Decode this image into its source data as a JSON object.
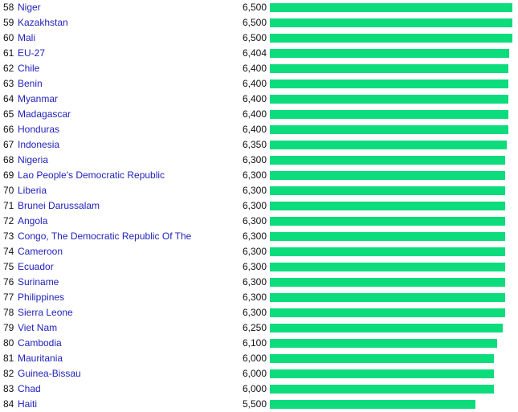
{
  "chart_data": {
    "type": "bar",
    "orientation": "horizontal",
    "bar_color": "#0ddc7c",
    "link_color": "#2222bb",
    "rows": [
      {
        "rank": "58",
        "country": "Niger",
        "value": 6500,
        "label": "6,500"
      },
      {
        "rank": "59",
        "country": "Kazakhstan",
        "value": 6500,
        "label": "6,500"
      },
      {
        "rank": "60",
        "country": "Mali",
        "value": 6500,
        "label": "6,500"
      },
      {
        "rank": "61",
        "country": "EU-27",
        "value": 6404,
        "label": "6,404"
      },
      {
        "rank": "62",
        "country": "Chile",
        "value": 6400,
        "label": "6,400"
      },
      {
        "rank": "63",
        "country": "Benin",
        "value": 6400,
        "label": "6,400"
      },
      {
        "rank": "64",
        "country": "Myanmar",
        "value": 6400,
        "label": "6,400"
      },
      {
        "rank": "65",
        "country": "Madagascar",
        "value": 6400,
        "label": "6,400"
      },
      {
        "rank": "66",
        "country": "Honduras",
        "value": 6400,
        "label": "6,400"
      },
      {
        "rank": "67",
        "country": "Indonesia",
        "value": 6350,
        "label": "6,350"
      },
      {
        "rank": "68",
        "country": "Nigeria",
        "value": 6300,
        "label": "6,300"
      },
      {
        "rank": "69",
        "country": "Lao People's Democratic Republic",
        "value": 6300,
        "label": "6,300"
      },
      {
        "rank": "70",
        "country": "Liberia",
        "value": 6300,
        "label": "6,300"
      },
      {
        "rank": "71",
        "country": "Brunei Darussalam",
        "value": 6300,
        "label": "6,300"
      },
      {
        "rank": "72",
        "country": "Angola",
        "value": 6300,
        "label": "6,300"
      },
      {
        "rank": "73",
        "country": "Congo, The Democratic Republic Of The",
        "value": 6300,
        "label": "6,300"
      },
      {
        "rank": "74",
        "country": "Cameroon",
        "value": 6300,
        "label": "6,300"
      },
      {
        "rank": "75",
        "country": "Ecuador",
        "value": 6300,
        "label": "6,300"
      },
      {
        "rank": "76",
        "country": "Suriname",
        "value": 6300,
        "label": "6,300"
      },
      {
        "rank": "77",
        "country": "Philippines",
        "value": 6300,
        "label": "6,300"
      },
      {
        "rank": "78",
        "country": "Sierra Leone",
        "value": 6300,
        "label": "6,300"
      },
      {
        "rank": "79",
        "country": "Viet Nam",
        "value": 6250,
        "label": "6,250"
      },
      {
        "rank": "80",
        "country": "Cambodia",
        "value": 6100,
        "label": "6,100"
      },
      {
        "rank": "81",
        "country": "Mauritania",
        "value": 6000,
        "label": "6,000"
      },
      {
        "rank": "82",
        "country": "Guinea-Bissau",
        "value": 6000,
        "label": "6,000"
      },
      {
        "rank": "83",
        "country": "Chad",
        "value": 6000,
        "label": "6,000"
      },
      {
        "rank": "84",
        "country": "Haiti",
        "value": 5500,
        "label": "5,500"
      }
    ]
  }
}
